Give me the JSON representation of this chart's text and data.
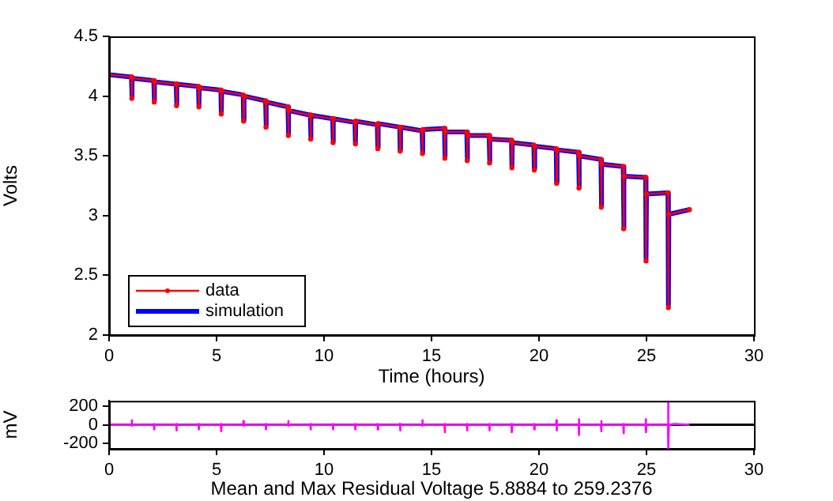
{
  "chart_data": [
    {
      "type": "line",
      "xlabel": "Time (hours)",
      "ylabel": "Volts",
      "xlim": [
        0,
        30
      ],
      "xticks": [
        0,
        5,
        10,
        15,
        20,
        25,
        30
      ],
      "ylim": [
        2,
        4.5
      ],
      "yticks": [
        2,
        2.5,
        3,
        3.5,
        4,
        4.5
      ],
      "grid": false,
      "legend": "bottom left",
      "x": [
        0,
        1.04,
        1.06,
        1.08,
        2.08,
        2.1,
        2.12,
        3.12,
        3.14,
        3.16,
        4.16,
        4.18,
        4.2,
        5.2,
        5.22,
        5.24,
        6.24,
        6.26,
        6.28,
        7.28,
        7.3,
        7.32,
        8.32,
        8.34,
        8.36,
        9.36,
        9.38,
        9.4,
        10.4,
        10.42,
        10.44,
        11.44,
        11.46,
        11.48,
        12.48,
        12.5,
        12.52,
        13.52,
        13.54,
        13.56,
        14.56,
        14.58,
        14.6,
        15.6,
        15.62,
        15.64,
        16.64,
        16.66,
        16.68,
        17.68,
        17.7,
        17.72,
        18.72,
        18.74,
        18.76,
        19.76,
        19.78,
        19.8,
        20.8,
        20.82,
        20.84,
        21.84,
        21.86,
        21.88,
        22.88,
        22.9,
        22.92,
        23.92,
        23.94,
        23.96,
        24.96,
        24.98,
        25,
        26,
        26.02,
        26.04,
        27
      ],
      "series": [
        {
          "name": "data",
          "color": "#ff0000",
          "marker": "circle",
          "values": [
            4.18,
            4.16,
            3.98,
            4.15,
            4.13,
            3.95,
            4.12,
            4.1,
            3.92,
            4.1,
            4.08,
            3.91,
            4.07,
            4.05,
            3.85,
            4.04,
            4.01,
            3.79,
            4,
            3.96,
            3.74,
            3.95,
            3.91,
            3.67,
            3.88,
            3.84,
            3.64,
            3.84,
            3.81,
            3.61,
            3.81,
            3.78,
            3.6,
            3.79,
            3.76,
            3.56,
            3.77,
            3.74,
            3.54,
            3.74,
            3.71,
            3.52,
            3.72,
            3.73,
            3.48,
            3.7,
            3.7,
            3.46,
            3.67,
            3.67,
            3.44,
            3.64,
            3.63,
            3.4,
            3.61,
            3.59,
            3.38,
            3.58,
            3.56,
            3.27,
            3.55,
            3.53,
            3.23,
            3.5,
            3.47,
            3.07,
            3.43,
            3.41,
            2.89,
            3.33,
            3.32,
            2.62,
            3.18,
            3.19,
            2.23,
            3.01,
            3.05
          ]
        },
        {
          "name": "simulation",
          "color": "#0000ff",
          "values": [
            4.18,
            4.16,
            3.99,
            4.15,
            4.13,
            3.96,
            4.12,
            4.1,
            3.93,
            4.1,
            4.08,
            3.92,
            4.07,
            4.05,
            3.86,
            4.04,
            4.01,
            3.8,
            4,
            3.96,
            3.75,
            3.95,
            3.91,
            3.68,
            3.88,
            3.84,
            3.65,
            3.84,
            3.81,
            3.62,
            3.81,
            3.78,
            3.61,
            3.79,
            3.76,
            3.57,
            3.77,
            3.74,
            3.55,
            3.74,
            3.71,
            3.53,
            3.72,
            3.73,
            3.49,
            3.7,
            3.7,
            3.47,
            3.67,
            3.67,
            3.45,
            3.64,
            3.63,
            3.41,
            3.61,
            3.59,
            3.39,
            3.58,
            3.56,
            3.28,
            3.55,
            3.53,
            3.24,
            3.5,
            3.47,
            3.08,
            3.43,
            3.41,
            2.9,
            3.33,
            3.32,
            2.64,
            3.18,
            3.19,
            2.25,
            3.01,
            3.05
          ]
        }
      ]
    },
    {
      "type": "line",
      "xlabel": "Mean and Max Residual Voltage 5.8884 to 259.2376",
      "ylabel": "mV",
      "xlim": [
        0,
        30
      ],
      "xticks": [
        0,
        5,
        10,
        15,
        20,
        25,
        30
      ],
      "ylim": [
        -260,
        260
      ],
      "yticks": [
        -200,
        0,
        200
      ],
      "grid": false,
      "legend": false,
      "ref_lines": [
        {
          "axis": "y",
          "value": 0,
          "color": "#000000"
        }
      ],
      "x": [
        0,
        1.04,
        1.05,
        1.06,
        1.08,
        2.08,
        2.09,
        2.1,
        2.12,
        3.12,
        3.13,
        3.14,
        3.16,
        4.16,
        4.17,
        4.18,
        4.2,
        5.2,
        5.21,
        5.22,
        5.24,
        6.24,
        6.25,
        6.26,
        6.28,
        7.28,
        7.29,
        7.3,
        7.32,
        8.32,
        8.33,
        8.34,
        8.36,
        9.36,
        9.37,
        9.38,
        9.4,
        10.4,
        10.41,
        10.42,
        10.44,
        11.44,
        11.45,
        11.46,
        11.48,
        12.48,
        12.49,
        12.5,
        12.52,
        13.52,
        13.53,
        13.54,
        13.56,
        14.56,
        14.57,
        14.58,
        14.6,
        15.6,
        15.61,
        15.62,
        15.64,
        16.64,
        16.65,
        16.66,
        16.68,
        17.68,
        17.69,
        17.7,
        17.72,
        18.72,
        18.73,
        18.74,
        18.76,
        19.76,
        19.77,
        19.78,
        19.8,
        20.8,
        20.81,
        20.82,
        20.84,
        21.84,
        21.85,
        21.86,
        21.88,
        22.88,
        22.89,
        22.9,
        22.92,
        23.92,
        23.93,
        23.94,
        23.96,
        24.96,
        24.97,
        24.98,
        25,
        26,
        26.01,
        26.02,
        26.04,
        26.3,
        27
      ],
      "series": [
        {
          "color": "#ff00ff",
          "values": [
            0,
            0,
            50,
            -10,
            0,
            0,
            10,
            -50,
            0,
            0,
            10,
            -60,
            0,
            0,
            10,
            -50,
            0,
            0,
            10,
            -70,
            0,
            0,
            40,
            -10,
            0,
            0,
            10,
            -50,
            0,
            0,
            40,
            -10,
            0,
            0,
            10,
            -50,
            0,
            0,
            10,
            -50,
            0,
            0,
            10,
            -50,
            0,
            0,
            10,
            -50,
            0,
            0,
            10,
            -60,
            0,
            0,
            50,
            -10,
            0,
            0,
            10,
            -80,
            0,
            0,
            10,
            -60,
            0,
            0,
            10,
            -60,
            0,
            0,
            10,
            -80,
            0,
            0,
            10,
            -50,
            0,
            0,
            50,
            -60,
            0,
            0,
            60,
            -110,
            0,
            0,
            40,
            -70,
            0,
            0,
            10,
            -90,
            0,
            0,
            60,
            -80,
            0,
            0,
            259,
            -260,
            0,
            10,
            0
          ]
        }
      ]
    }
  ]
}
